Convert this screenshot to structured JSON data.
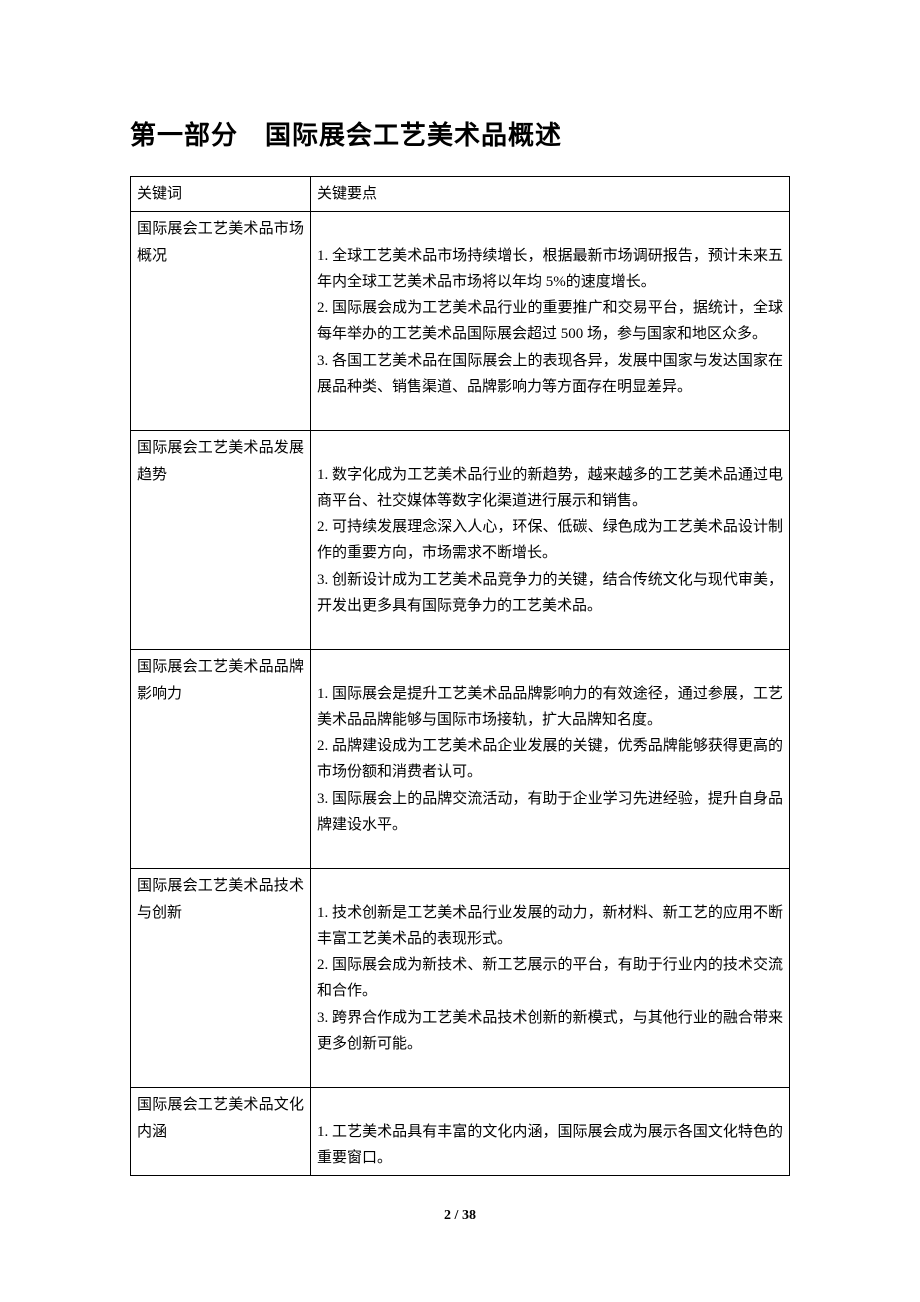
{
  "title": "第一部分　国际展会工艺美术品概述",
  "headers": {
    "keyword": "关键词",
    "points": "关键要点"
  },
  "rows": [
    {
      "keyword": "国际展会工艺美术品市场概况",
      "points": [
        "1. 全球工艺美术品市场持续增长，根据最新市场调研报告，预计未来五年内全球工艺美术品市场将以年均 5%的速度增长。",
        "2. 国际展会成为工艺美术品行业的重要推广和交易平台，据统计，全球每年举办的工艺美术品国际展会超过 500 场，参与国家和地区众多。",
        "3. 各国工艺美术品在国际展会上的表现各异，发展中国家与发达国家在展品种类、销售渠道、品牌影响力等方面存在明显差异。"
      ]
    },
    {
      "keyword": "国际展会工艺美术品发展趋势",
      "points": [
        "1. 数字化成为工艺美术品行业的新趋势，越来越多的工艺美术品通过电商平台、社交媒体等数字化渠道进行展示和销售。",
        "2. 可持续发展理念深入人心，环保、低碳、绿色成为工艺美术品设计制作的重要方向，市场需求不断增长。",
        "3. 创新设计成为工艺美术品竞争力的关键，结合传统文化与现代审美，开发出更多具有国际竞争力的工艺美术品。"
      ]
    },
    {
      "keyword": "国际展会工艺美术品品牌影响力",
      "points": [
        "1. 国际展会是提升工艺美术品品牌影响力的有效途径，通过参展，工艺美术品品牌能够与国际市场接轨，扩大品牌知名度。",
        "2. 品牌建设成为工艺美术品企业发展的关键，优秀品牌能够获得更高的市场份额和消费者认可。",
        "3. 国际展会上的品牌交流活动，有助于企业学习先进经验，提升自身品牌建设水平。"
      ]
    },
    {
      "keyword": "国际展会工艺美术品技术与创新",
      "points": [
        "1. 技术创新是工艺美术品行业发展的动力，新材料、新工艺的应用不断丰富工艺美术品的表现形式。",
        "2. 国际展会成为新技术、新工艺展示的平台，有助于行业内的技术交流和合作。",
        "3. 跨界合作成为工艺美术品技术创新的新模式，与其他行业的融合带来更多创新可能。"
      ]
    },
    {
      "keyword": "国际展会工艺美术品文化内涵",
      "points": [
        "1. 工艺美术品具有丰富的文化内涵，国际展会成为展示各国文化特色的重要窗口。"
      ],
      "noTrailingBlank": true
    }
  ],
  "footer": {
    "current": "2",
    "sep": " / ",
    "total": "38"
  }
}
